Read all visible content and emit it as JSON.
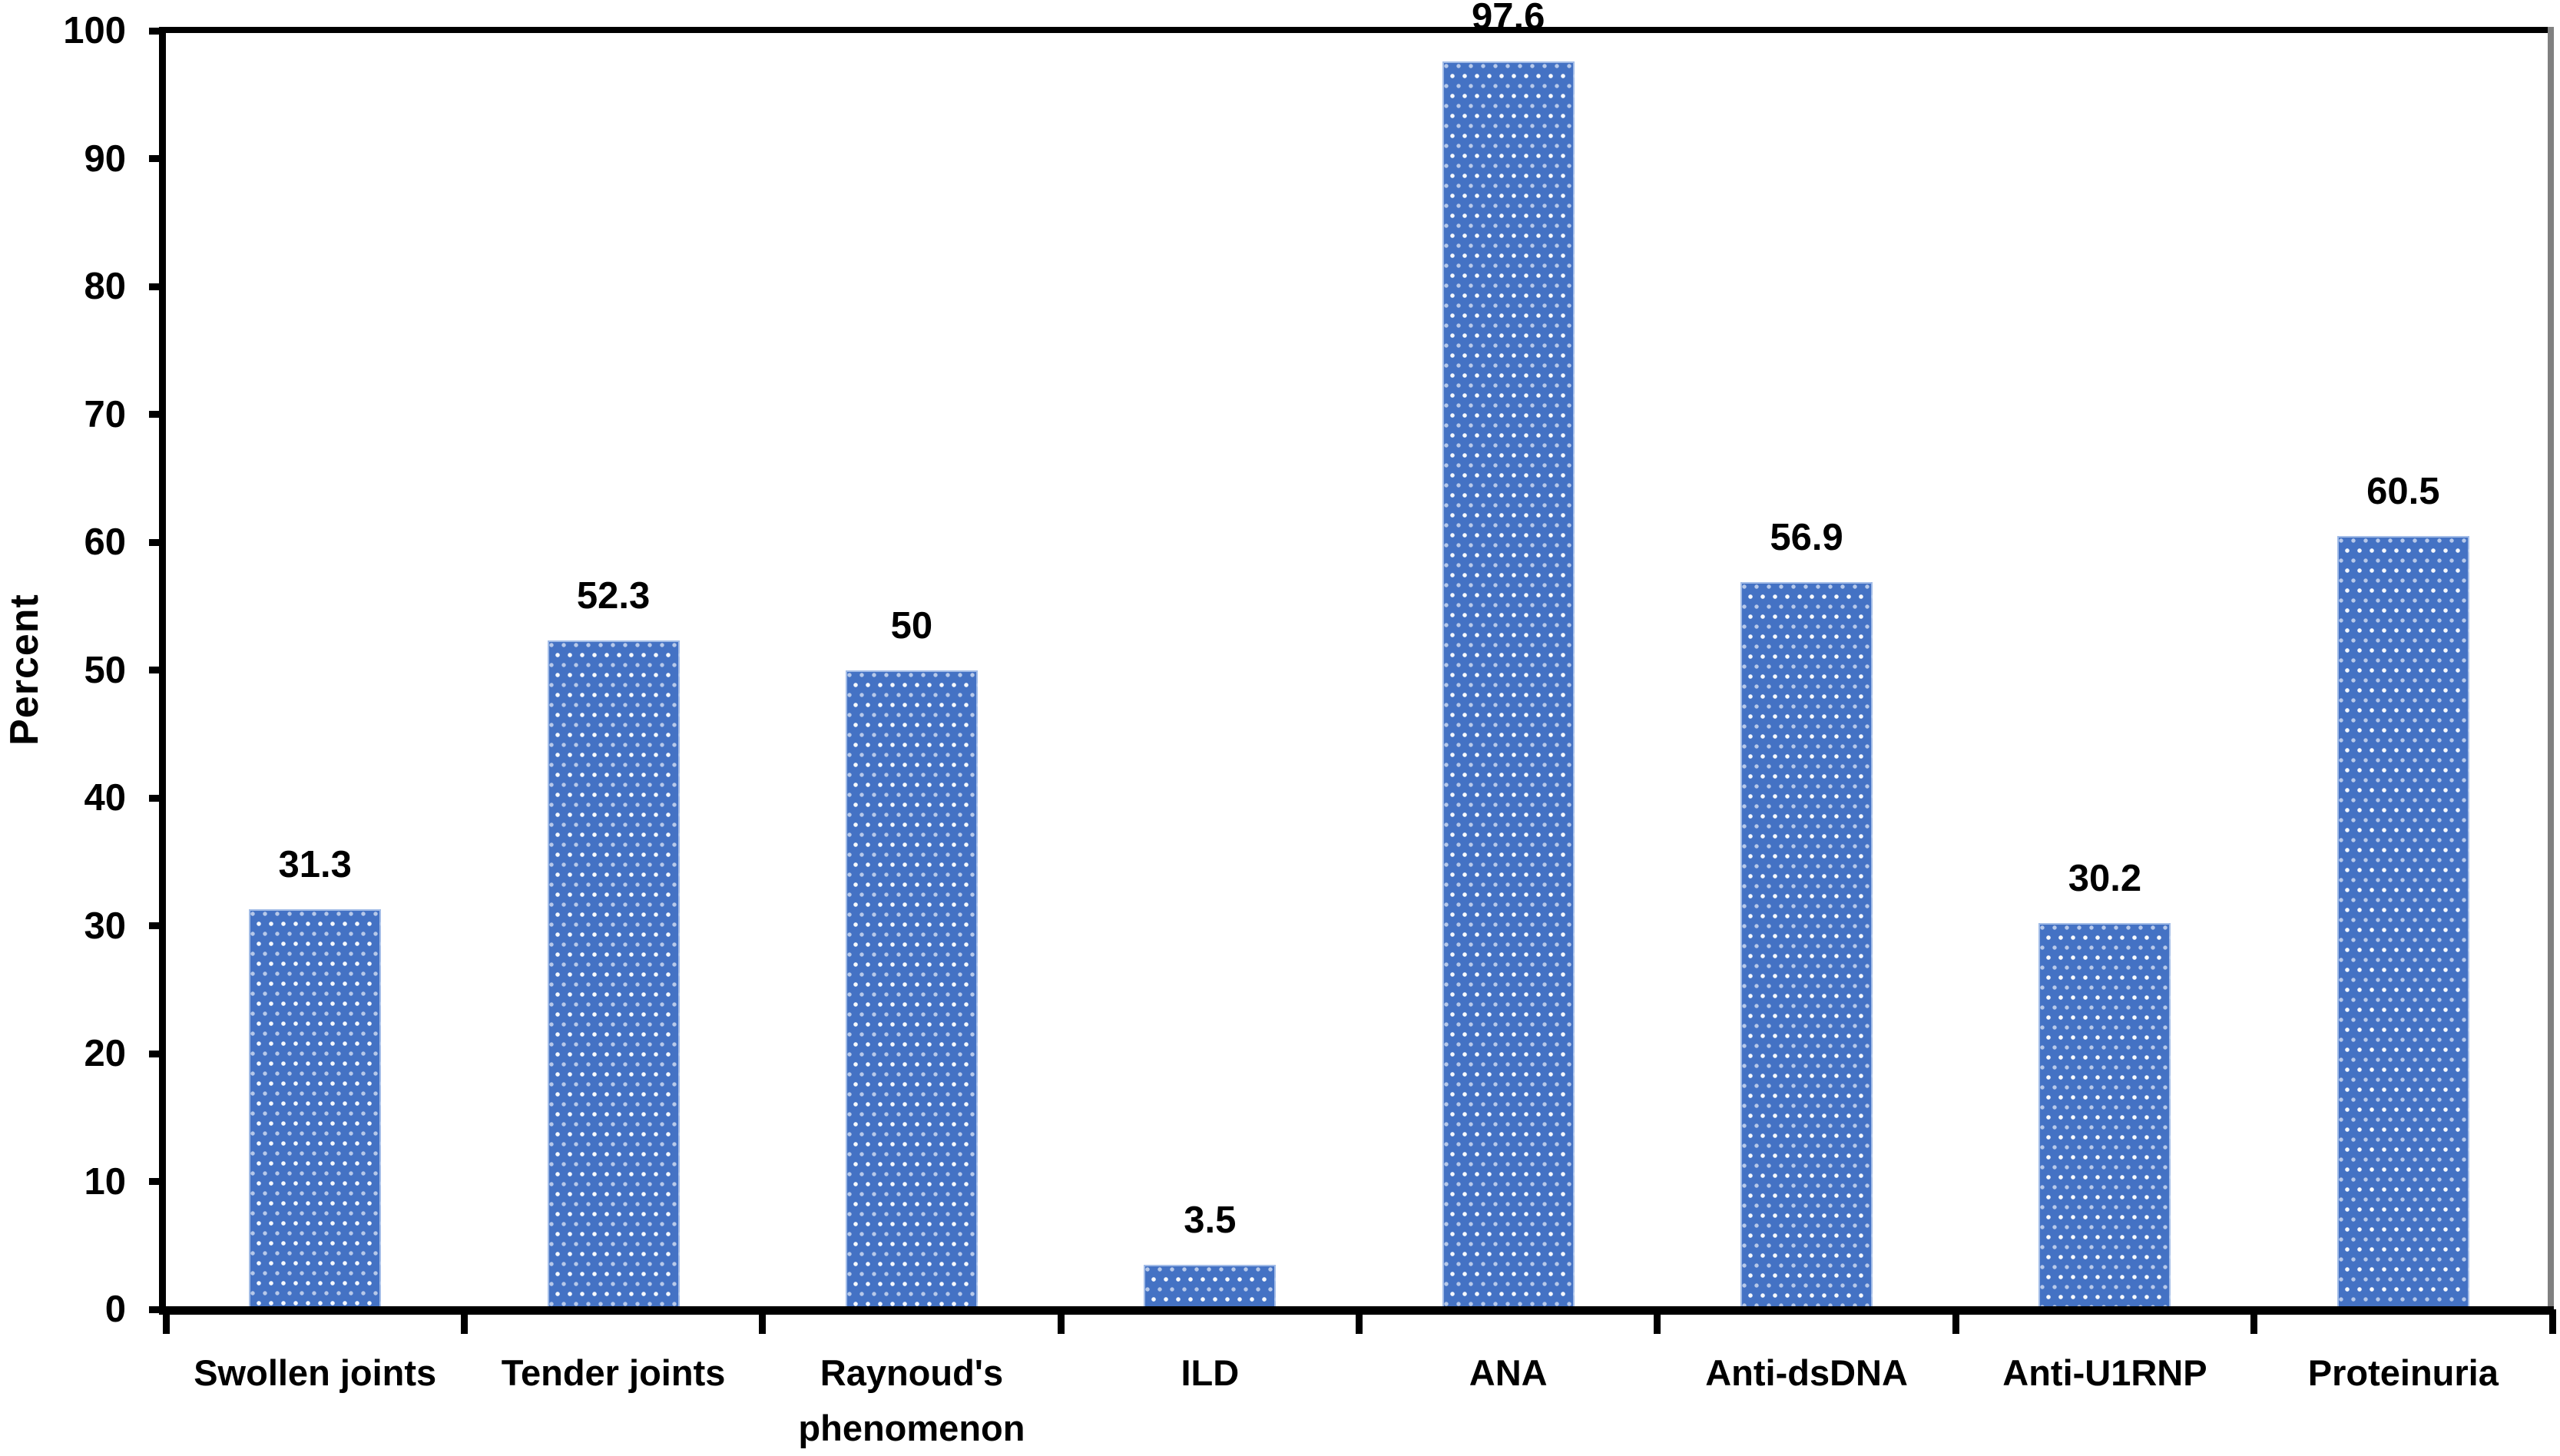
{
  "chart_data": {
    "type": "bar",
    "title": "",
    "xlabel": "",
    "ylabel": "Percent",
    "ylim": [
      0,
      100
    ],
    "ytick_interval": 10,
    "yticks": [
      0,
      10,
      20,
      30,
      40,
      50,
      60,
      70,
      80,
      90,
      100
    ],
    "categories": [
      "Swollen joints",
      "Tender joints",
      "Raynoud's phenomenon",
      "ILD",
      "ANA",
      "Anti-dsDNA",
      "Anti-U1RNP",
      "Proteinuria"
    ],
    "values": [
      31.3,
      52.3,
      50,
      3.5,
      97.6,
      56.9,
      30.2,
      60.5
    ],
    "value_labels": [
      "31.3",
      "52.3",
      "50",
      "3.5",
      "97.6",
      "56.9",
      "30.2",
      "60.5"
    ],
    "grid": false,
    "legend_position": "none",
    "bar_color": "#4472C4",
    "bar_pattern": "staggered-white-dots",
    "axis_color": "#000000",
    "plot_border_top_color": "#000000",
    "plot_border_right_color": "#808080",
    "text_color": "#000000"
  }
}
